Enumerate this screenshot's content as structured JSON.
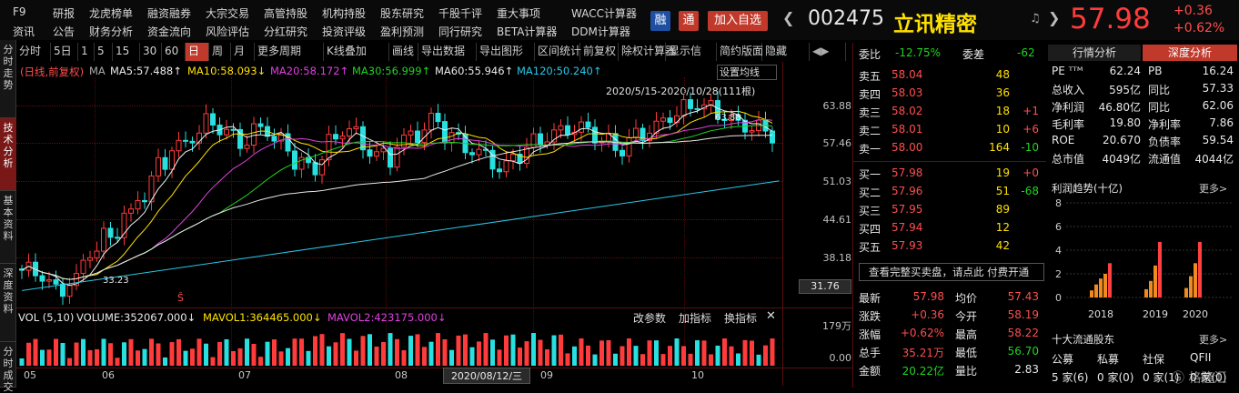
{
  "menu_row1": [
    "F9",
    "研报",
    "龙虎榜单",
    "融资融券",
    "大宗交易",
    "高管持股",
    "机构持股",
    "股东研究",
    "千股千评",
    "重大事项",
    "WACC计算器"
  ],
  "menu_row2": [
    "资讯",
    "公告",
    "财务分析",
    "资金流向",
    "风险评估",
    "分红研究",
    "投资评级",
    "盈利预测",
    "同行研究",
    "BETA计算器",
    "DDM计算器"
  ],
  "badges": {
    "rong": "融",
    "tong": "通",
    "add": "加入自选"
  },
  "stock": {
    "code": "002475",
    "name": "立讯精密",
    "price": "57.98",
    "change": "+0.36",
    "pct": "+0.62%"
  },
  "sidebar": [
    "分时走势",
    "技术分析",
    "基本资料",
    "深度资料",
    "分时成交"
  ],
  "toolbar": [
    "分时",
    "5日",
    "1",
    "5",
    "15",
    "30",
    "60",
    "日",
    "周",
    "月",
    "更多周期",
    "K线叠加",
    "画线",
    "导出数据",
    "导出图形",
    "区间统计",
    "前复权",
    "除权计算器",
    "显示信",
    "简约版面",
    "隐藏"
  ],
  "ma_line": {
    "label": "(日线,前复权)",
    "ma": "MA",
    "ma5": "MA5:57.488↑",
    "ma10": "MA10:58.093↓",
    "ma20": "MA20:58.172↑",
    "ma30": "MA30:56.999↑",
    "ma60": "MA60:55.946↑",
    "ma120": "MA120:50.240↑"
  },
  "set_ma": "设置均线",
  "range_label": "2020/5/15-2020/10/28(111根)",
  "chart_labels": {
    "high": "63.88",
    "low": "33.23",
    "price_tag": "31.76",
    "date_tag": "2020/08/12/三"
  },
  "y_axis": [
    "63.88",
    "57.46",
    "51.03",
    "44.61",
    "38.18"
  ],
  "x_axis": [
    "05",
    "06",
    "07",
    "08",
    "09",
    "10"
  ],
  "chart_data": {
    "type": "candlestick",
    "x_range": [
      "2020/5/15",
      "2020/10/28"
    ],
    "bars": 111,
    "y_ticks": [
      63.88,
      57.46,
      51.03,
      44.61,
      38.18
    ],
    "high": 63.88,
    "low": 33.23
  },
  "vol": {
    "title": "VOL (5,10)",
    "volume": "VOLUME:352067.000↓",
    "mavol1": "MAVOL1:364465.000↓",
    "mavol2": "MAVOL2:423175.000↓",
    "buttons": [
      "改参数",
      "加指标",
      "换指标"
    ],
    "close": "✕",
    "y": [
      "179万",
      "0.00"
    ]
  },
  "orderbook": {
    "weibi_label": "委比",
    "weibi": "-12.75%",
    "weicha_label": "委差",
    "weicha": "-62",
    "sells": [
      {
        "l": "卖五",
        "p": "58.04",
        "v": "48",
        "c": ""
      },
      {
        "l": "卖四",
        "p": "58.03",
        "v": "36",
        "c": ""
      },
      {
        "l": "卖三",
        "p": "58.02",
        "v": "18",
        "c": "+1"
      },
      {
        "l": "卖二",
        "p": "58.01",
        "v": "10",
        "c": "+6"
      },
      {
        "l": "卖一",
        "p": "58.00",
        "v": "164",
        "c": "-10"
      }
    ],
    "buys": [
      {
        "l": "买一",
        "p": "57.98",
        "v": "19",
        "c": "+0"
      },
      {
        "l": "买二",
        "p": "57.96",
        "v": "51",
        "c": "-68"
      },
      {
        "l": "买三",
        "p": "57.95",
        "v": "89",
        "c": ""
      },
      {
        "l": "买四",
        "p": "57.94",
        "v": "12",
        "c": ""
      },
      {
        "l": "买五",
        "p": "57.93",
        "v": "42",
        "c": ""
      }
    ],
    "cta": "查看完整买卖盘，请点此 付费开通",
    "stats": [
      [
        "最新",
        "57.98",
        "均价",
        "57.43"
      ],
      [
        "涨跌",
        "+0.36",
        "今开",
        "58.19"
      ],
      [
        "涨幅",
        "+0.62%",
        "最高",
        "58.22"
      ],
      [
        "总手",
        "35.21万",
        "最低",
        "56.70"
      ],
      [
        "金额",
        "20.22亿",
        "量比",
        "2.83"
      ]
    ]
  },
  "right": {
    "tabs": [
      "行情分析",
      "深度分析"
    ],
    "metrics": [
      [
        "PE ᵀᵀᴹ",
        "62.24",
        "PB",
        "16.24"
      ],
      [
        "总收入",
        "595亿",
        "同比",
        "57.33"
      ],
      [
        "净利润",
        "46.80亿",
        "同比",
        "62.06"
      ],
      [
        "毛利率",
        "19.80",
        "净利率",
        "7.86"
      ],
      [
        "ROE",
        "20.670",
        "负债率",
        "59.54"
      ],
      [
        "总市值",
        "4049亿",
        "流通值",
        "4044亿"
      ]
    ],
    "profit_title": "利润趋势(十亿)",
    "more": "更多>",
    "profit_y": [
      "8",
      "6",
      "4",
      "2",
      "0"
    ],
    "profit_years": [
      "2018",
      "2019",
      "2020"
    ],
    "profit_values": [
      [
        0.6,
        1.1,
        1.6,
        2.0,
        2.9
      ],
      [
        0.7,
        1.4,
        2.7,
        4.7
      ],
      [
        0.8,
        1.8,
        2.9,
        4.7
      ]
    ],
    "holders_title": "十大流通股东",
    "holders_more": "更多>",
    "holder_types": [
      "公募",
      "私募",
      "社保",
      "QFII"
    ],
    "holder_counts": [
      "5 家(6)",
      "0 家(0)",
      "0 家(1)",
      "0 家(0)"
    ],
    "watermark": "格隆汇"
  }
}
